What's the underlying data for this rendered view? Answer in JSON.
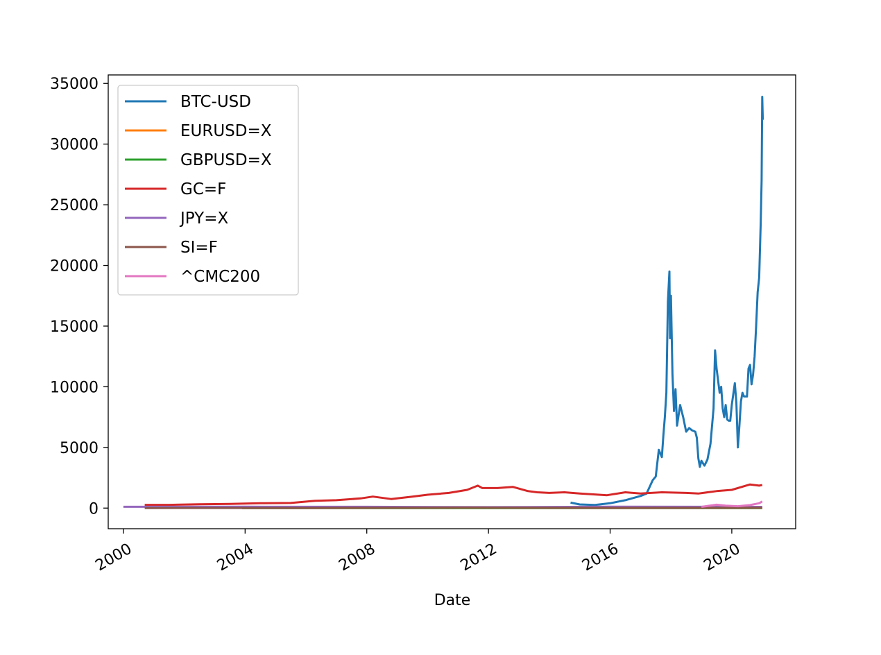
{
  "chart_data": {
    "type": "line",
    "title": "",
    "xlabel": "Date",
    "ylabel": "",
    "xlim": [
      1999.5,
      2022.1
    ],
    "ylim": [
      -1700,
      35700
    ],
    "x_ticks": [
      2000,
      2004,
      2008,
      2012,
      2016,
      2020
    ],
    "x_tick_labels": [
      "2000",
      "2004",
      "2008",
      "2012",
      "2016",
      "2020"
    ],
    "y_ticks": [
      0,
      5000,
      10000,
      15000,
      20000,
      25000,
      30000,
      35000
    ],
    "y_tick_labels": [
      "0",
      "5000",
      "10000",
      "15000",
      "20000",
      "25000",
      "30000",
      "35000"
    ],
    "grid": false,
    "legend_position": "top-left",
    "series": [
      {
        "name": "BTC-USD",
        "color": "#1f77b4",
        "x": [
          2014.7,
          2015.0,
          2015.5,
          2016.0,
          2016.5,
          2017.0,
          2017.2,
          2017.4,
          2017.5,
          2017.6,
          2017.7,
          2017.75,
          2017.8,
          2017.85,
          2017.9,
          2017.95,
          2017.97,
          2018.0,
          2018.05,
          2018.1,
          2018.15,
          2018.2,
          2018.3,
          2018.4,
          2018.5,
          2018.6,
          2018.7,
          2018.8,
          2018.85,
          2018.9,
          2018.95,
          2019.0,
          2019.1,
          2019.2,
          2019.3,
          2019.4,
          2019.45,
          2019.5,
          2019.55,
          2019.6,
          2019.65,
          2019.7,
          2019.75,
          2019.8,
          2019.85,
          2019.9,
          2019.95,
          2020.0,
          2020.1,
          2020.15,
          2020.2,
          2020.25,
          2020.3,
          2020.35,
          2020.4,
          2020.5,
          2020.55,
          2020.6,
          2020.65,
          2020.7,
          2020.75,
          2020.8,
          2020.85,
          2020.9,
          2020.95,
          2020.98,
          2021.0,
          2021.02
        ],
        "values": [
          450,
          300,
          260,
          400,
          650,
          1000,
          1200,
          2300,
          2600,
          4800,
          4200,
          6000,
          7500,
          9500,
          17000,
          19500,
          14000,
          17500,
          11000,
          8000,
          9800,
          6800,
          8500,
          7500,
          6300,
          6600,
          6400,
          6300,
          5800,
          4100,
          3400,
          3900,
          3500,
          4000,
          5300,
          8200,
          13000,
          11500,
          10500,
          9500,
          10000,
          8200,
          7500,
          8500,
          7300,
          7200,
          7200,
          8500,
          10300,
          8700,
          5000,
          6800,
          8800,
          9500,
          9200,
          9200,
          11500,
          11800,
          10200,
          11000,
          12500,
          15000,
          17800,
          19000,
          23500,
          27000,
          33900,
          32000
        ]
      },
      {
        "name": "EURUSD=X",
        "color": "#ff7f0e",
        "x": [
          2003.9,
          2008.5,
          2012.0,
          2016.0,
          2021.0
        ],
        "values": [
          1.2,
          1.5,
          1.3,
          1.1,
          1.2
        ]
      },
      {
        "name": "GBPUSD=X",
        "color": "#2ca02c",
        "x": [
          2003.9,
          2008.0,
          2012.0,
          2016.0,
          2021.0
        ],
        "values": [
          1.8,
          2.0,
          1.6,
          1.4,
          1.35
        ]
      },
      {
        "name": "GC=F",
        "color": "#d62728",
        "x": [
          2000.7,
          2001.5,
          2002.5,
          2003.5,
          2004.5,
          2005.5,
          2006.3,
          2007.0,
          2007.8,
          2008.2,
          2008.8,
          2009.5,
          2010.0,
          2010.7,
          2011.3,
          2011.65,
          2011.8,
          2012.3,
          2012.8,
          2013.3,
          2013.6,
          2014.0,
          2014.5,
          2015.0,
          2015.9,
          2016.5,
          2017.0,
          2017.7,
          2018.5,
          2018.9,
          2019.5,
          2020.0,
          2020.6,
          2020.9,
          2021.0
        ],
        "values": [
          270,
          270,
          320,
          350,
          400,
          420,
          600,
          650,
          800,
          950,
          750,
          950,
          1100,
          1250,
          1500,
          1850,
          1650,
          1650,
          1750,
          1400,
          1300,
          1250,
          1300,
          1200,
          1060,
          1300,
          1200,
          1300,
          1250,
          1200,
          1400,
          1500,
          1950,
          1850,
          1900
        ]
      },
      {
        "name": "JPY=X",
        "color": "#9467bd",
        "x": [
          2000.0,
          2004.0,
          2008.0,
          2012.0,
          2016.0,
          2021.0
        ],
        "values": [
          105,
          110,
          105,
          80,
          110,
          104
        ]
      },
      {
        "name": "SI=F",
        "color": "#8c564b",
        "x": [
          2000.7,
          2006.0,
          2011.3,
          2016.0,
          2020.6,
          2021.0
        ],
        "values": [
          5,
          12,
          45,
          15,
          28,
          26
        ]
      },
      {
        "name": "^CMC200",
        "color": "#e377c2",
        "x": [
          2019.0,
          2019.5,
          2019.8,
          2020.2,
          2020.6,
          2020.9,
          2021.0
        ],
        "values": [
          100,
          280,
          200,
          150,
          250,
          400,
          550
        ]
      }
    ]
  }
}
